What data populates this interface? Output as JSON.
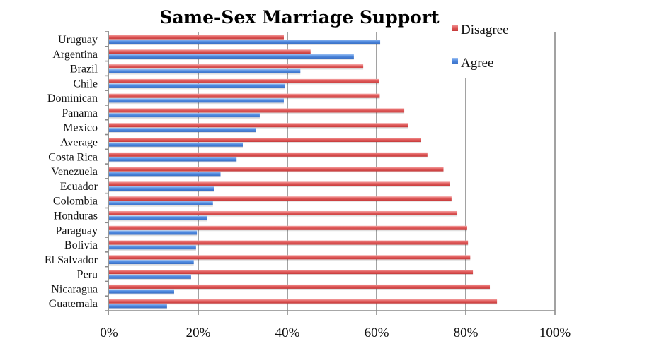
{
  "chart_data": {
    "type": "bar",
    "orientation": "horizontal",
    "title": "Same-Sex Marriage Support",
    "xlabel": "",
    "ylabel": "",
    "xlim": [
      0,
      100
    ],
    "x_ticks": [
      "0%",
      "20%",
      "40%",
      "60%",
      "80%",
      "100%"
    ],
    "x_tick_values": [
      0,
      20,
      40,
      60,
      80,
      100
    ],
    "grid": true,
    "legend_position": "top-right",
    "categories": [
      "Uruguay",
      "Argentina",
      "Brazil",
      "Chile",
      "Dominican",
      "Panama",
      "Mexico",
      "Average",
      "Costa Rica",
      "Venezuela",
      "Ecuador",
      "Colombia",
      "Honduras",
      "Paraguay",
      "Bolivia",
      "El Salvador",
      "Peru",
      "Nicaragua",
      "Guatemala"
    ],
    "series": [
      {
        "name": "Disagree",
        "color": "#e05555",
        "values": [
          39.2,
          45.2,
          57.0,
          60.5,
          60.7,
          66.2,
          67.1,
          70.0,
          71.4,
          75.0,
          76.5,
          76.8,
          78.1,
          80.3,
          80.5,
          81.0,
          81.6,
          85.4,
          87.0
        ]
      },
      {
        "name": "Agree",
        "color": "#4a86e0",
        "values": [
          60.8,
          54.9,
          42.9,
          39.5,
          39.2,
          33.8,
          32.9,
          30.0,
          28.6,
          25.0,
          23.5,
          23.3,
          22.0,
          19.7,
          19.5,
          19.0,
          18.4,
          14.6,
          13.0
        ]
      }
    ]
  }
}
